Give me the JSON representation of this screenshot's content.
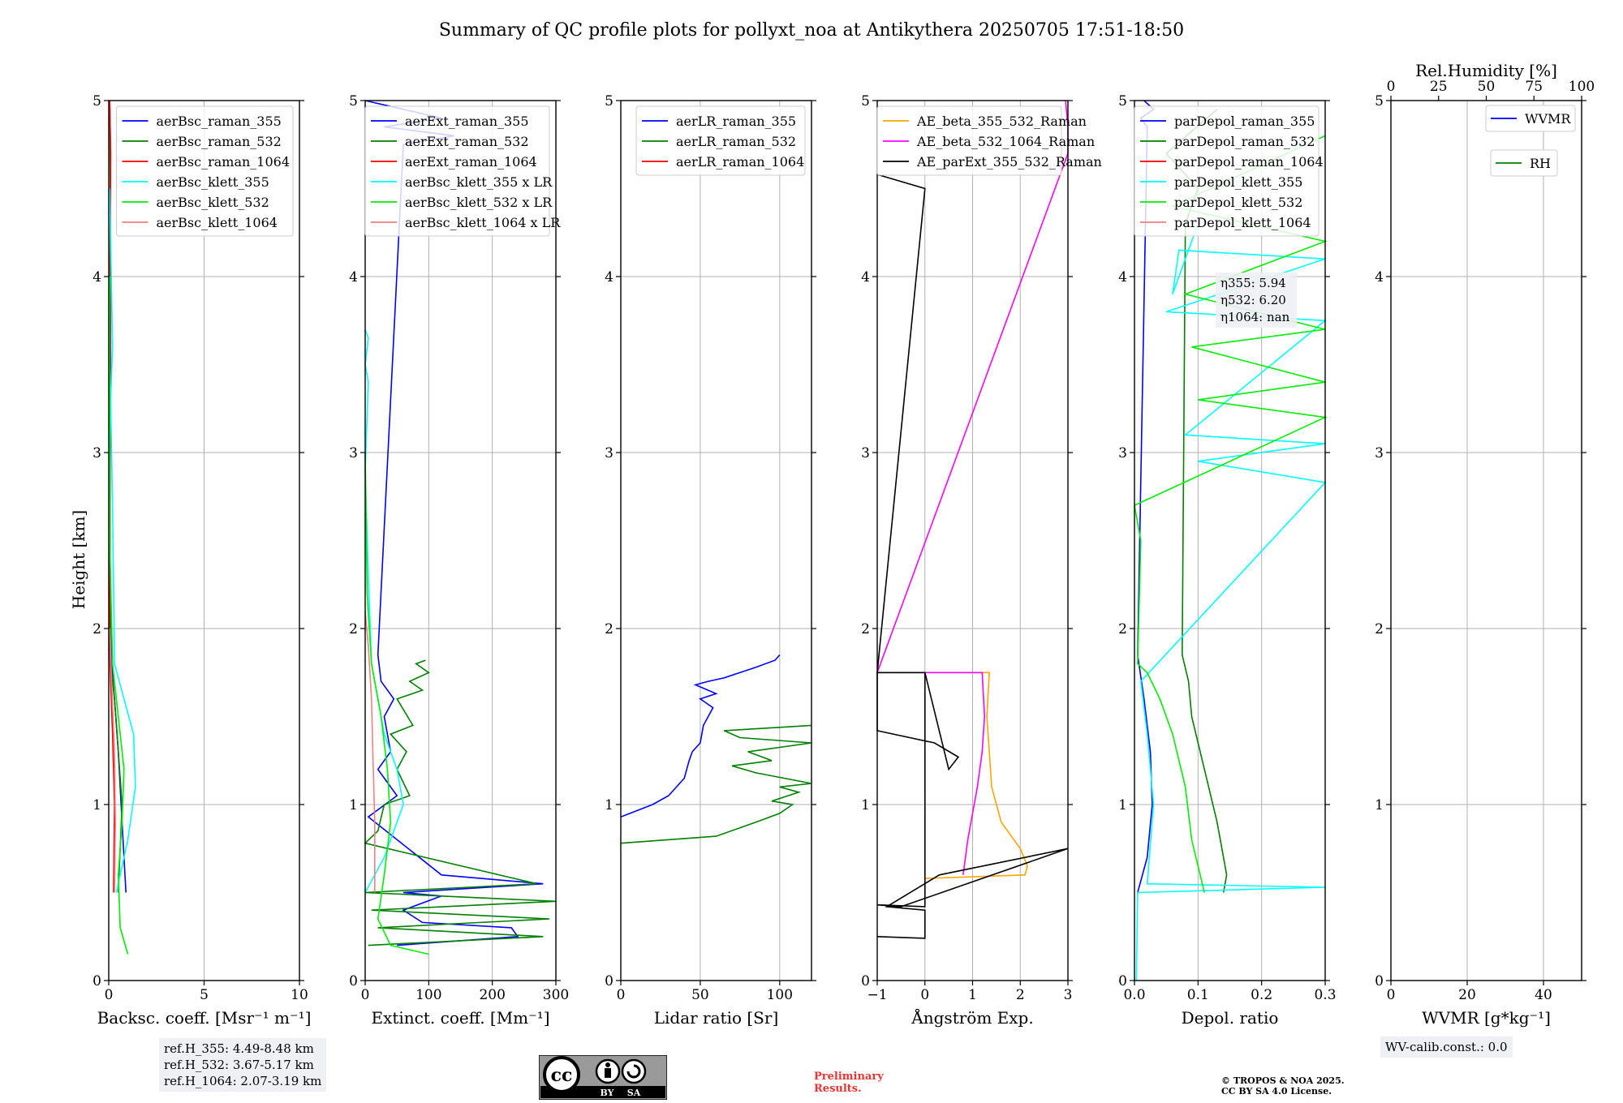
{
  "figure": {
    "title": "Summary of QC profile plots for pollyxt_noa at Antikythera 20250705 17:51-18:50",
    "ylabel": "Height [km]",
    "ref_heights": [
      "ref.H_355: 4.49-8.48 km",
      "ref.H_532: 3.67-5.17 km",
      "ref.H_1064: 2.07-3.19 km"
    ],
    "wv_calib": "WV-calib.const.: 0.0",
    "cc_license_badge": {
      "cc": "cc",
      "by": "BY",
      "sa": "SA"
    },
    "preliminary": [
      "Preliminary",
      "Results."
    ],
    "copyright": [
      "© TROPOS & NOA 2025.",
      "CC BY SA 4.0 License."
    ]
  },
  "chart_data": [
    {
      "type": "line",
      "title": "",
      "xlabel": "Backsc. coeff. [Msr⁻¹ m⁻¹]",
      "ylabel": "Height [km]",
      "xlim": [
        0,
        10
      ],
      "ylim": [
        0,
        5
      ],
      "xticks": [
        0,
        5,
        10
      ],
      "yticks": [
        0,
        1,
        2,
        3,
        4,
        5
      ],
      "legend": "top-right",
      "series": [
        {
          "name": "aerBsc_raman_355",
          "color": "#0000ff",
          "x": [
            0.9,
            0.7,
            0.5,
            0.3,
            0.15,
            0.05,
            0.1,
            0.08,
            0.1,
            0.05
          ],
          "y": [
            0.5,
            0.9,
            1.3,
            1.6,
            1.8,
            2.5,
            3.5,
            4.3,
            4.7,
            5.0
          ]
        },
        {
          "name": "aerBsc_raman_532",
          "color": "#008000",
          "x": [
            0.5,
            0.7,
            0.5,
            0.3,
            0.1,
            0.05,
            0.08,
            0.05
          ],
          "y": [
            0.5,
            1.0,
            1.3,
            1.6,
            1.8,
            3.0,
            4.5,
            5.0
          ]
        },
        {
          "name": "aerBsc_raman_1064",
          "color": "#ff0000",
          "x": [
            0.25,
            0.3,
            0.2,
            0.1,
            0.05,
            0.1,
            0.05
          ],
          "y": [
            0.5,
            1.0,
            1.4,
            1.7,
            1.9,
            4.7,
            5.0
          ]
        },
        {
          "name": "aerBsc_klett_355",
          "color": "#00ffff",
          "x": [
            0.4,
            1.0,
            1.4,
            1.3,
            0.8,
            0.3,
            0.2,
            0.1,
            0.2,
            0.05
          ],
          "y": [
            0.5,
            0.8,
            1.1,
            1.4,
            1.6,
            1.8,
            2.7,
            3.3,
            3.6,
            4.5
          ]
        },
        {
          "name": "aerBsc_klett_532",
          "color": "#00ee00",
          "x": [
            1.0,
            0.6,
            0.5,
            0.7,
            0.8,
            0.5,
            0.2,
            0.05,
            0.05
          ],
          "y": [
            0.15,
            0.3,
            0.6,
            0.9,
            1.2,
            1.5,
            1.8,
            2.5,
            4.0
          ]
        },
        {
          "name": "aerBsc_klett_1064",
          "color": "#f08080",
          "x": [
            0.3,
            0.35,
            0.3,
            0.15,
            0.05
          ],
          "y": [
            0.5,
            0.9,
            1.3,
            1.7,
            2.0
          ]
        }
      ]
    },
    {
      "type": "line",
      "title": "",
      "xlabel": "Extinct. coeff. [Mm⁻¹]",
      "ylabel": "",
      "xlim": [
        0,
        300
      ],
      "ylim": [
        0,
        5
      ],
      "xticks": [
        0,
        100,
        200,
        300
      ],
      "yticks": [
        0,
        1,
        2,
        3,
        4,
        5
      ],
      "legend": "top-right",
      "series": [
        {
          "name": "aerExt_raman_355",
          "color": "#0000ff",
          "x": [
            50,
            240,
            230,
            90,
            60,
            120,
            60,
            280,
            120,
            5,
            50,
            20,
            40,
            30,
            45,
            25,
            20,
            60,
            140,
            30,
            120,
            60,
            0
          ],
          "y": [
            0.2,
            0.25,
            0.3,
            0.33,
            0.4,
            0.48,
            0.5,
            0.55,
            0.6,
            0.93,
            1.05,
            1.2,
            1.3,
            1.5,
            1.6,
            1.7,
            1.85,
            4.75,
            4.8,
            4.85,
            4.9,
            4.95,
            5.0
          ]
        },
        {
          "name": "aerExt_raman_532",
          "color": "#008000",
          "x": [
            5,
            280,
            20,
            290,
            10,
            300,
            0,
            270,
            0,
            20,
            30,
            70,
            50,
            65,
            40,
            75,
            50,
            90,
            70,
            100,
            80,
            95
          ],
          "y": [
            0.2,
            0.25,
            0.3,
            0.35,
            0.4,
            0.45,
            0.5,
            0.55,
            0.78,
            0.85,
            1.0,
            1.05,
            1.2,
            1.3,
            1.4,
            1.45,
            1.6,
            1.65,
            1.7,
            1.75,
            1.8,
            1.82
          ]
        },
        {
          "name": "aerExt_raman_1064",
          "color": "#ff0000",
          "x": [],
          "y": []
        },
        {
          "name": "aerBsc_klett_355 x LR",
          "color": "#00ffff",
          "x": [
            0,
            30,
            40,
            60,
            50,
            30,
            20,
            10,
            5,
            0,
            5,
            0,
            5,
            0
          ],
          "y": [
            0.5,
            0.7,
            0.8,
            1.0,
            1.2,
            1.4,
            1.6,
            1.8,
            2.3,
            2.9,
            3.4,
            3.5,
            3.65,
            3.7
          ]
        },
        {
          "name": "aerBsc_klett_532 x LR",
          "color": "#00ee00",
          "x": [
            100,
            40,
            20,
            30,
            40,
            35,
            25,
            10,
            3,
            0
          ],
          "y": [
            0.15,
            0.2,
            0.35,
            0.6,
            0.9,
            1.2,
            1.5,
            1.8,
            2.2,
            3.0
          ]
        },
        {
          "name": "aerBsc_klett_1064 x LR",
          "color": "#f08080",
          "x": [
            15,
            15,
            12,
            10,
            5,
            0
          ],
          "y": [
            0.5,
            0.9,
            1.3,
            1.6,
            1.9,
            2.1
          ]
        }
      ]
    },
    {
      "type": "line",
      "title": "",
      "xlabel": "Lidar ratio [Sr]",
      "ylabel": "",
      "xlim": [
        0,
        120
      ],
      "ylim": [
        0,
        5
      ],
      "xticks": [
        0,
        50,
        100
      ],
      "yticks": [
        0,
        1,
        2,
        3,
        4,
        5
      ],
      "legend": "top-right",
      "series": [
        {
          "name": "aerLR_raman_355",
          "color": "#0000ff",
          "x": [
            0,
            20,
            30,
            40,
            43,
            45,
            50,
            52,
            55,
            58,
            50,
            60,
            47,
            55,
            65,
            75,
            85,
            97,
            100
          ],
          "y": [
            0.93,
            1.0,
            1.05,
            1.15,
            1.25,
            1.3,
            1.35,
            1.45,
            1.5,
            1.55,
            1.6,
            1.63,
            1.68,
            1.7,
            1.72,
            1.75,
            1.78,
            1.82,
            1.85
          ]
        },
        {
          "name": "aerLR_raman_532",
          "color": "#008000",
          "x": [
            0,
            60,
            85,
            100,
            108,
            95,
            112,
            100,
            120,
            85,
            70,
            95,
            80,
            120,
            75,
            65,
            120
          ],
          "y": [
            0.78,
            0.82,
            0.9,
            0.95,
            1.0,
            1.02,
            1.07,
            1.1,
            1.12,
            1.18,
            1.22,
            1.25,
            1.3,
            1.35,
            1.38,
            1.42,
            1.45
          ]
        },
        {
          "name": "aerLR_raman_1064",
          "color": "#ff0000",
          "x": [],
          "y": []
        }
      ]
    },
    {
      "type": "line",
      "title": "",
      "xlabel": "Ångström Exp.",
      "ylabel": "",
      "xlim": [
        -1,
        3
      ],
      "ylim": [
        0,
        5
      ],
      "xticks": [
        -1,
        0,
        1,
        2,
        3
      ],
      "yticks": [
        0,
        1,
        2,
        3,
        4,
        5
      ],
      "legend": "top-right",
      "series": [
        {
          "name": "AE_beta_355_532_Raman",
          "color": "#ffa500",
          "x": [
            0,
            2.1,
            2.15,
            2.0,
            1.6,
            1.4,
            1.35,
            1.3,
            1.35,
            0.8
          ],
          "y": [
            0.58,
            0.6,
            0.65,
            0.75,
            0.9,
            1.1,
            1.3,
            1.5,
            1.75,
            1.75
          ]
        },
        {
          "name": "AE_beta_532_1064_Raman",
          "color": "#ff00ff",
          "x": [
            0.8,
            0.9,
            1.1,
            1.2,
            1.25,
            1.2,
            -1,
            3.0,
            3.0,
            2.95
          ],
          "y": [
            0.6,
            0.8,
            1.1,
            1.3,
            1.5,
            1.75,
            1.75,
            4.7,
            4.85,
            5.0
          ]
        },
        {
          "name": "AE_parExt_355_532_Raman",
          "color": "#000000",
          "x": [
            -1,
            0,
            0,
            -0.8,
            0.3,
            3.0,
            -0.5,
            -1,
            0,
            0,
            -1,
            0,
            0.5,
            0.7,
            0.2,
            -1,
            -1,
            0,
            0,
            -1
          ],
          "y": [
            0.25,
            0.24,
            0.4,
            0.42,
            0.6,
            0.75,
            0.42,
            0.43,
            0.42,
            1.75,
            1.75,
            1.75,
            1.2,
            1.27,
            1.35,
            1.42,
            1.75,
            4.5,
            4.5,
            4.58
          ]
        }
      ]
    },
    {
      "type": "line",
      "title": "",
      "xlabel": "Depol. ratio",
      "ylabel": "",
      "xlim": [
        0.0,
        0.3
      ],
      "ylim": [
        0,
        5
      ],
      "xticks": [
        0.0,
        0.1,
        0.2,
        0.3
      ],
      "yticks": [
        0,
        1,
        2,
        3,
        4,
        5
      ],
      "legend": "top-right",
      "annotation": [
        "η355: 5.94",
        "η532: 6.20",
        "η1064: nan"
      ],
      "series": [
        {
          "name": "parDepol_raman_355",
          "color": "#0000ff",
          "x": [
            0.005,
            0.02,
            0.028,
            0.025,
            0.015,
            0.005,
            0.02,
            0.01,
            0.03,
            0.015
          ],
          "y": [
            0.5,
            0.7,
            1.0,
            1.3,
            1.6,
            1.85,
            4.85,
            4.9,
            4.95,
            5.0
          ]
        },
        {
          "name": "parDepol_raman_532",
          "color": "#008000",
          "x": [
            0.14,
            0.145,
            0.13,
            0.11,
            0.09,
            0.085,
            0.075,
            0.08,
            0.1,
            0.05,
            0.13
          ],
          "y": [
            0.5,
            0.6,
            0.9,
            1.2,
            1.5,
            1.7,
            1.85,
            4.3,
            4.5,
            4.7,
            4.95
          ]
        },
        {
          "name": "parDepol_raman_1064",
          "color": "#ff0000",
          "x": [],
          "y": []
        },
        {
          "name": "parDepol_klett_355",
          "color": "#00ffff",
          "x": [
            0.003,
            0.005,
            0.3,
            0.02,
            0.03,
            0.02,
            0.01,
            0.3,
            0.1,
            0.3,
            0.08,
            0.3,
            0.05,
            0.3,
            0.07,
            0.06,
            0.1
          ],
          "y": [
            0.0,
            0.5,
            0.53,
            0.55,
            1.0,
            1.4,
            1.7,
            2.83,
            2.95,
            3.05,
            3.1,
            3.75,
            3.8,
            4.1,
            4.15,
            3.9,
            4.3
          ]
        },
        {
          "name": "parDepol_klett_532",
          "color": "#00ee00",
          "x": [
            0.11,
            0.09,
            0.08,
            0.06,
            0.04,
            0.02,
            0.005,
            0.01,
            0.0,
            0.3,
            0.1,
            0.3,
            0.09,
            0.3,
            0.08,
            0.3,
            0.06,
            0.3
          ],
          "y": [
            0.5,
            0.8,
            1.1,
            1.4,
            1.6,
            1.75,
            1.8,
            2.5,
            2.7,
            3.2,
            3.3,
            3.4,
            3.6,
            3.7,
            3.9,
            4.2,
            4.4,
            4.8
          ]
        },
        {
          "name": "parDepol_klett_1064",
          "color": "#f08080",
          "x": [],
          "y": []
        }
      ]
    },
    {
      "type": "line",
      "title": "",
      "xlabel": "WVMR [g*kg⁻¹]",
      "xlabel_top": "Rel.Humidity [%]",
      "ylabel": "",
      "xlim": [
        0,
        50
      ],
      "ylim": [
        0,
        5
      ],
      "xticks": [
        0,
        20,
        40
      ],
      "yticks": [
        0,
        1,
        2,
        3,
        4,
        5
      ],
      "xticks_top": [
        0,
        25,
        50,
        75,
        100
      ],
      "legend": "top-right",
      "series": [
        {
          "name": "WVMR",
          "color": "#0000ff",
          "x": [],
          "y": []
        },
        {
          "name": "RH",
          "color": "#008000",
          "x": [],
          "y": []
        }
      ]
    }
  ]
}
